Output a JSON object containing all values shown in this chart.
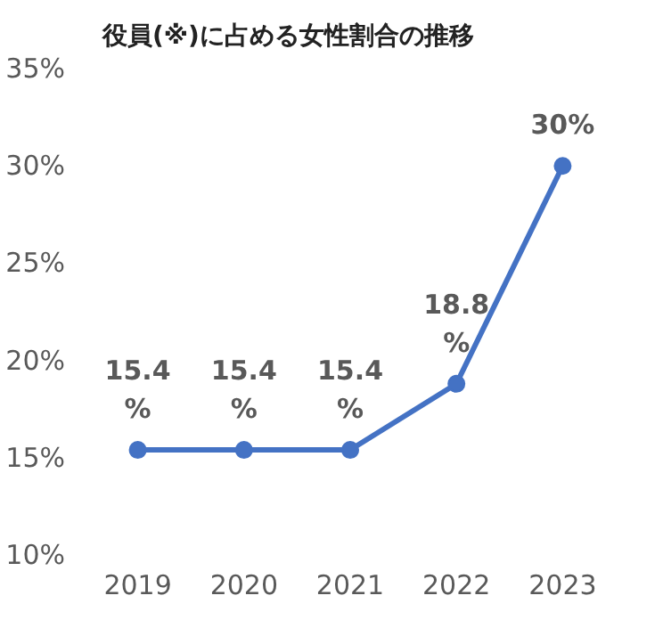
{
  "chart_data": {
    "type": "line",
    "title": "役員(※)に占める女性割合の推移",
    "categories": [
      "2019",
      "2020",
      "2021",
      "2022",
      "2023"
    ],
    "series": [
      {
        "color": "#4472c4",
        "values": [
          15.4,
          15.4,
          15.4,
          18.8,
          30
        ],
        "value_labels": [
          "15.4%",
          "15.4%",
          "15.4%",
          "18.8%",
          "30%"
        ]
      }
    ],
    "ylim": [
      10,
      35
    ],
    "yticks": [
      {
        "value": 10,
        "label": "10%"
      },
      {
        "value": 15,
        "label": "15%"
      },
      {
        "value": 20,
        "label": "20%"
      },
      {
        "value": 25,
        "label": "25%"
      },
      {
        "value": 30,
        "label": "30%"
      },
      {
        "value": 35,
        "label": "35%"
      }
    ],
    "marker": "circle",
    "grid": false
  }
}
